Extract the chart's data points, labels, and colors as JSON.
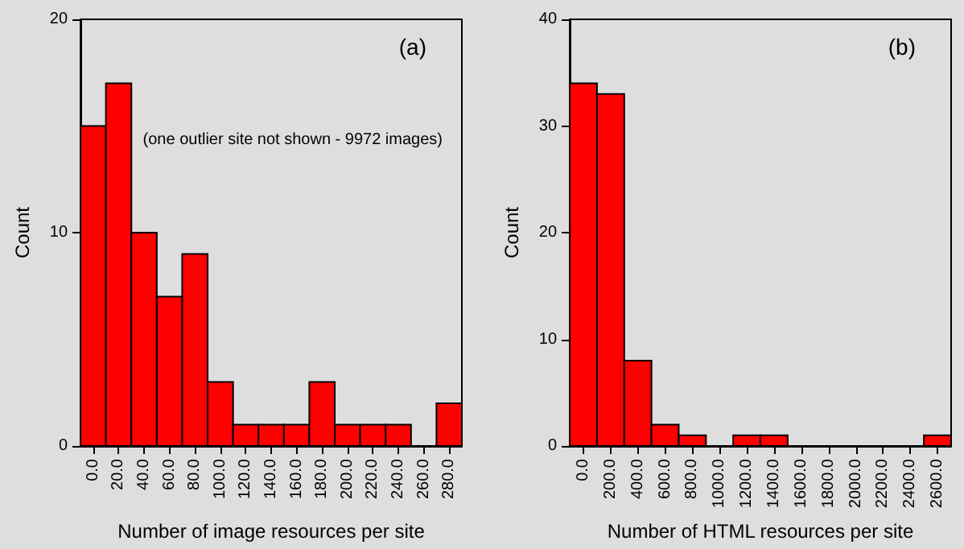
{
  "chart_data": [
    {
      "type": "histogram",
      "xlabel": "Number of image resources per site",
      "ylabel": "Count",
      "annotations": [
        "(a)",
        "(one outlier site not shown - 9972 images)"
      ],
      "color": "#ff0000",
      "bins": [
        -10,
        10,
        30,
        50,
        70,
        90,
        110,
        130,
        150,
        170,
        190,
        210,
        230,
        250,
        270,
        290
      ],
      "values": [
        15,
        17,
        10,
        7,
        9,
        3,
        1,
        1,
        1,
        3,
        1,
        1,
        1,
        0,
        2
      ],
      "xlim": [
        -10,
        290
      ],
      "xticks": [
        {
          "value": 0,
          "label": "0.0"
        },
        {
          "value": 20,
          "label": "20.0"
        },
        {
          "value": 40,
          "label": "40.0"
        },
        {
          "value": 60,
          "label": "60.0"
        },
        {
          "value": 80,
          "label": "80.0"
        },
        {
          "value": 100,
          "label": "100.0"
        },
        {
          "value": 120,
          "label": "120.0"
        },
        {
          "value": 140,
          "label": "140.0"
        },
        {
          "value": 160,
          "label": "160.0"
        },
        {
          "value": 180,
          "label": "180.0"
        },
        {
          "value": 200,
          "label": "200.0"
        },
        {
          "value": 220,
          "label": "220.0"
        },
        {
          "value": 240,
          "label": "240.0"
        },
        {
          "value": 260,
          "label": "260.0"
        },
        {
          "value": 280,
          "label": "280.0"
        }
      ],
      "ylim": [
        0,
        20
      ],
      "yticks": [
        0,
        10,
        20
      ],
      "grid": false
    },
    {
      "type": "histogram",
      "xlabel": "Number of HTML resources per site",
      "ylabel": "Count",
      "annotations": [
        "(b)"
      ],
      "color": "#ff0000",
      "bins": [
        -100,
        100,
        300,
        500,
        700,
        900,
        1100,
        1300,
        1500,
        1700,
        1900,
        2100,
        2300,
        2500,
        2700
      ],
      "values": [
        34,
        33,
        8,
        2,
        1,
        0,
        1,
        1,
        0,
        0,
        0,
        0,
        0,
        1
      ],
      "xlim": [
        -100,
        2700
      ],
      "xticks": [
        {
          "value": 0,
          "label": "0.0"
        },
        {
          "value": 200,
          "label": "200.0"
        },
        {
          "value": 400,
          "label": "400.0"
        },
        {
          "value": 600,
          "label": "600.0"
        },
        {
          "value": 800,
          "label": "800.0"
        },
        {
          "value": 1000,
          "label": "1000.0"
        },
        {
          "value": 1200,
          "label": "1200.0"
        },
        {
          "value": 1400,
          "label": "1400.0"
        },
        {
          "value": 1600,
          "label": "1600.0"
        },
        {
          "value": 1800,
          "label": "1800.0"
        },
        {
          "value": 2000,
          "label": "2000.0"
        },
        {
          "value": 2200,
          "label": "2200.0"
        },
        {
          "value": 2400,
          "label": "2400.0"
        },
        {
          "value": 2600,
          "label": "2600.0"
        }
      ],
      "ylim": [
        0,
        40
      ],
      "yticks": [
        0,
        10,
        20,
        30,
        40
      ],
      "grid": false
    }
  ]
}
